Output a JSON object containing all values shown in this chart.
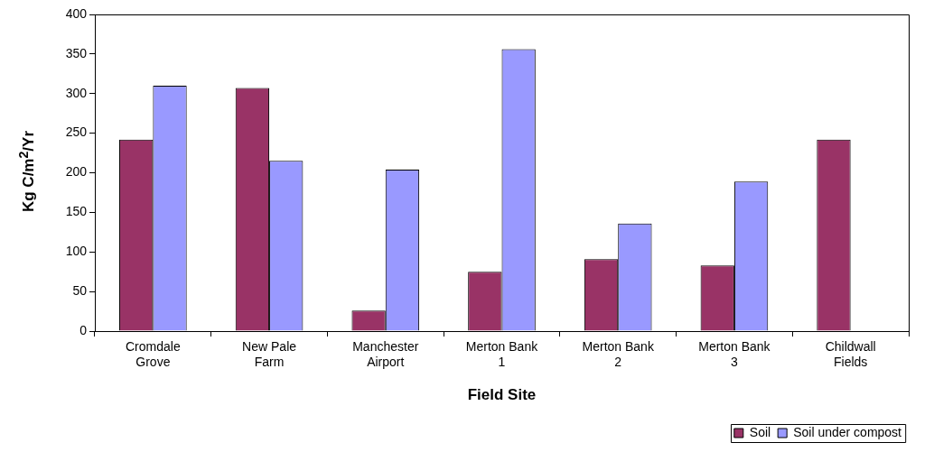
{
  "chart_data": {
    "type": "bar",
    "xlabel": "Field Site",
    "ylabel": "Kg C/m$^{2}$/Yr",
    "categories": [
      "Cromdale Grove",
      "New Pale Farm",
      "Manchester Airport",
      "Merton Bank 1",
      "Merton Bank 2",
      "Merton Bank 3",
      "Childwall Fields"
    ],
    "series": [
      {
        "name": "Soil",
        "color": "#993366",
        "values": [
          242,
          307,
          26,
          75,
          91,
          83,
          242
        ]
      },
      {
        "name": "Soil under compost",
        "color": "#9999ff",
        "values": [
          310,
          215,
          204,
          356,
          136,
          189,
          null
        ]
      }
    ],
    "ylim": [
      0,
      400
    ],
    "yticks": [
      0,
      50,
      100,
      150,
      200,
      250,
      300,
      350,
      400
    ],
    "grid": false,
    "legend": "bottom right"
  }
}
